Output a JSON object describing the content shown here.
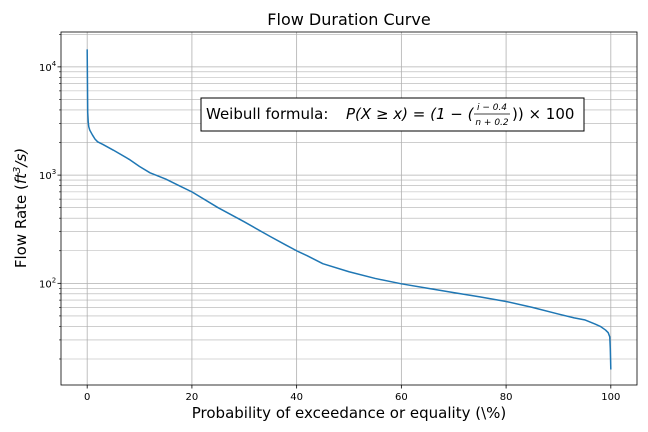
{
  "chart_data": {
    "type": "line",
    "title": "Flow Duration Curve",
    "xlabel": "Probability of exceedance or equality (\\%)",
    "ylabel": "Flow Rate (ft³/s)",
    "ylabel_main": "Flow Rate (",
    "ylabel_var": "ft",
    "ylabel_sup": "3",
    "ylabel_tail": "/s)",
    "xlim": [
      -5,
      105
    ],
    "ylim": [
      11.5,
      21000
    ],
    "yscale": "log",
    "grid": true,
    "grid_minor": true,
    "x_ticks": [
      0,
      20,
      40,
      60,
      80,
      100
    ],
    "x_tick_labels": [
      "0",
      "20",
      "40",
      "60",
      "80",
      "100"
    ],
    "y_ticks": [
      100,
      1000,
      10000
    ],
    "y_tick_labels": [
      "10",
      "10",
      "10"
    ],
    "y_tick_exponents": [
      "2",
      "3",
      "4"
    ],
    "line_color": "#1f77b4",
    "annotation": {
      "prefix": "Weibull formula: ",
      "lhs": "P(X ≥ x) = (1 − (",
      "frac_num": "i − 0.4",
      "frac_den": "n + 0.2",
      "rhs": ")) × 100"
    },
    "series": [
      {
        "x": [
          0,
          0.1,
          0.2,
          0.3,
          0.5,
          1,
          1.5,
          2,
          3,
          5,
          8,
          10,
          12,
          15,
          18,
          20,
          25,
          30,
          35,
          38,
          40,
          42,
          45,
          50,
          55,
          60,
          65,
          70,
          75,
          80,
          85,
          90,
          93,
          95,
          97,
          98,
          99,
          99.5,
          99.8,
          99.9,
          100
        ],
        "y": [
          14500,
          3800,
          3100,
          2800,
          2600,
          2350,
          2150,
          2030,
          1920,
          1700,
          1400,
          1200,
          1050,
          920,
          780,
          700,
          500,
          370,
          270,
          225,
          200,
          180,
          152,
          128,
          111,
          99,
          90,
          82,
          75,
          68,
          60,
          52,
          48,
          46,
          42,
          40,
          37,
          35,
          32,
          25,
          16
        ]
      }
    ]
  }
}
